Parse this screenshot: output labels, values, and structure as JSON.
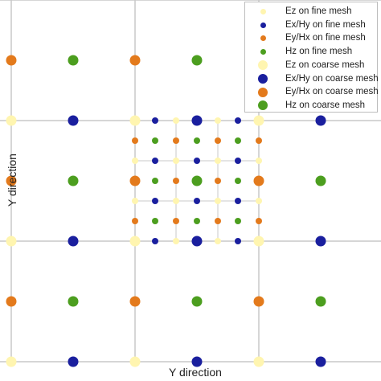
{
  "diagram": {
    "xlabel": "Y direction",
    "ylabel": "Y direction",
    "colors": {
      "grid": "#c8c8c8",
      "Ez": "#fff5b0",
      "ExHy": "#1a1f9e",
      "EyHx": "#e37a1c",
      "Hz": "#4c9e1f"
    },
    "legend": [
      {
        "label": "Ez on fine mesh",
        "kind": "Ez",
        "size": "small"
      },
      {
        "label": "Ex/Hy on fine mesh",
        "kind": "ExHy",
        "size": "small"
      },
      {
        "label": "Ey/Hx on fine mesh",
        "kind": "EyHx",
        "size": "small"
      },
      {
        "label": "Hz on fine mesh",
        "kind": "Hz",
        "size": "small"
      },
      {
        "label": "Ez on coarse mesh",
        "kind": "Ez",
        "size": "large"
      },
      {
        "label": "Ex/Hy on coarse mesh",
        "kind": "ExHy",
        "size": "large"
      },
      {
        "label": "Ey/Hx on coarse mesh",
        "kind": "EyHx",
        "size": "large"
      },
      {
        "label": "Hz on coarse mesh",
        "kind": "Hz",
        "size": "large"
      }
    ]
  }
}
